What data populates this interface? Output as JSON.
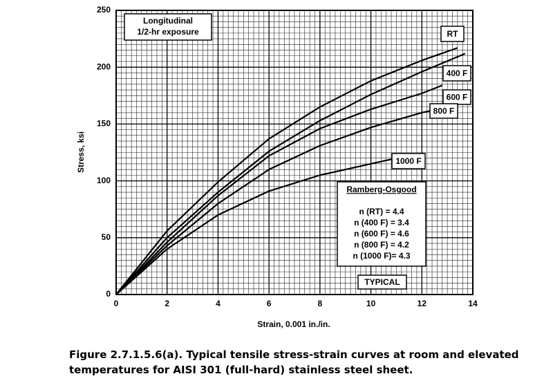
{
  "chart_data": {
    "type": "line",
    "xlabel": "Strain, 0.001 in./in.",
    "ylabel": "Stress, ksi",
    "xlim": [
      0,
      14
    ],
    "xticks": [
      0,
      2,
      4,
      6,
      8,
      10,
      12,
      14
    ],
    "ylim": [
      0,
      250
    ],
    "yticks": [
      0,
      50,
      100,
      150,
      200,
      250
    ],
    "grid": true,
    "minor_grid_x": 10,
    "minor_grid_y": 10,
    "series": [
      {
        "name": "RT",
        "color": "#000000",
        "x": [
          0,
          2,
          4,
          6,
          8,
          10,
          12,
          13.4
        ],
        "values": [
          0,
          56,
          99,
          137,
          165,
          188,
          206,
          217
        ]
      },
      {
        "name": "400 F",
        "color": "#000000",
        "x": [
          0,
          2,
          4,
          6,
          8,
          10,
          12,
          13.7
        ],
        "values": [
          0,
          50,
          90,
          126,
          153,
          176,
          196,
          212
        ]
      },
      {
        "name": "600 F",
        "color": "#000000",
        "x": [
          0,
          2,
          4,
          6,
          8,
          10,
          12,
          12.8
        ],
        "values": [
          0,
          46,
          87,
          122,
          146,
          163,
          177,
          184
        ]
      },
      {
        "name": "800 F",
        "color": "#000000",
        "x": [
          0,
          2,
          4,
          6,
          8,
          10,
          12,
          12.4
        ],
        "values": [
          0,
          43,
          80,
          110,
          131,
          147,
          160,
          162
        ]
      },
      {
        "name": "1000 F",
        "color": "#000000",
        "x": [
          0,
          2,
          4,
          6,
          8,
          10,
          10.8
        ],
        "values": [
          0,
          40,
          70,
          91,
          105,
          115,
          119
        ]
      }
    ],
    "annotations": {
      "condition": [
        "Longitudinal",
        "1/2-hr exposure"
      ],
      "ramberg_osgood_title": "Ramberg-Osgood",
      "ramberg_osgood": [
        "n (RT) = 4.4",
        "n (400 F) = 3.4",
        "n (600 F) = 4.6",
        "n (800 F) = 4.2",
        "n (1000 F)= 4.3"
      ],
      "typical": "TYPICAL"
    },
    "caption": [
      "Figure 2.7.1.5.6(a).  Typical tensile stress-strain curves at room and elevated",
      "temperatures for AISI 301 (full-hard) stainless steel sheet."
    ]
  }
}
